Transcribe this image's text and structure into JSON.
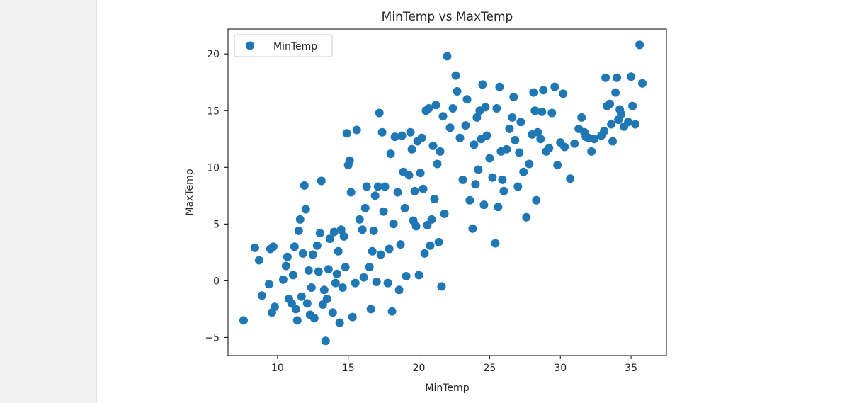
{
  "chart_data": {
    "type": "scatter",
    "title": "MinTemp vs MaxTemp",
    "xlabel": "MinTemp",
    "ylabel": "MaxTemp",
    "xlim": [
      6.5,
      37.5
    ],
    "ylim": [
      -6.6,
      22.2
    ],
    "xticks": [
      10,
      15,
      20,
      25,
      30,
      35
    ],
    "yticks": [
      -5,
      0,
      5,
      10,
      15,
      20
    ],
    "xtick_labels": [
      "10",
      "15",
      "20",
      "25",
      "30",
      "35"
    ],
    "ytick_labels": [
      "−5",
      "0",
      "5",
      "10",
      "15",
      "20"
    ],
    "legend_position": "upper-left",
    "grid": false,
    "series": [
      {
        "name": "MinTemp",
        "color": "#1f77b4",
        "points": [
          [
            7.6,
            -3.5
          ],
          [
            8.4,
            2.9
          ],
          [
            8.7,
            1.8
          ],
          [
            8.9,
            -1.3
          ],
          [
            9.4,
            -0.3
          ],
          [
            9.5,
            2.8
          ],
          [
            9.7,
            3.0
          ],
          [
            9.6,
            -2.8
          ],
          [
            9.8,
            -2.3
          ],
          [
            10.4,
            0.1
          ],
          [
            10.6,
            1.3
          ],
          [
            10.7,
            2.1
          ],
          [
            10.8,
            -1.6
          ],
          [
            11.0,
            -2.0
          ],
          [
            11.1,
            0.5
          ],
          [
            11.2,
            3.0
          ],
          [
            11.3,
            -2.5
          ],
          [
            11.4,
            -3.5
          ],
          [
            11.5,
            4.4
          ],
          [
            11.6,
            5.4
          ],
          [
            11.7,
            -1.4
          ],
          [
            11.8,
            2.4
          ],
          [
            11.9,
            8.4
          ],
          [
            12.0,
            6.3
          ],
          [
            12.1,
            -2.0
          ],
          [
            12.2,
            0.9
          ],
          [
            12.3,
            -3.0
          ],
          [
            12.4,
            -0.6
          ],
          [
            12.5,
            2.3
          ],
          [
            12.6,
            -3.3
          ],
          [
            12.8,
            3.1
          ],
          [
            12.9,
            0.8
          ],
          [
            13.0,
            4.2
          ],
          [
            13.1,
            8.8
          ],
          [
            13.2,
            -2.1
          ],
          [
            13.3,
            -0.8
          ],
          [
            13.4,
            -5.3
          ],
          [
            13.5,
            -1.6
          ],
          [
            13.6,
            1.0
          ],
          [
            13.7,
            3.7
          ],
          [
            13.9,
            -2.8
          ],
          [
            14.0,
            4.3
          ],
          [
            14.1,
            -0.2
          ],
          [
            14.2,
            0.6
          ],
          [
            14.3,
            2.6
          ],
          [
            14.4,
            -3.7
          ],
          [
            14.5,
            4.5
          ],
          [
            14.6,
            -0.6
          ],
          [
            14.7,
            3.9
          ],
          [
            14.8,
            1.2
          ],
          [
            14.9,
            13.0
          ],
          [
            15.0,
            10.2
          ],
          [
            15.1,
            10.6
          ],
          [
            15.2,
            7.8
          ],
          [
            15.3,
            -3.2
          ],
          [
            15.5,
            -0.2
          ],
          [
            15.6,
            13.3
          ],
          [
            15.8,
            5.4
          ],
          [
            16.0,
            4.5
          ],
          [
            16.1,
            0.3
          ],
          [
            16.2,
            6.4
          ],
          [
            16.3,
            8.3
          ],
          [
            16.5,
            1.2
          ],
          [
            16.6,
            -2.5
          ],
          [
            16.7,
            2.6
          ],
          [
            16.8,
            4.4
          ],
          [
            16.9,
            7.5
          ],
          [
            17.0,
            -0.1
          ],
          [
            17.1,
            8.3
          ],
          [
            17.2,
            14.8
          ],
          [
            17.3,
            2.3
          ],
          [
            17.4,
            13.1
          ],
          [
            17.5,
            6.1
          ],
          [
            17.6,
            8.3
          ],
          [
            17.8,
            -0.2
          ],
          [
            17.9,
            2.8
          ],
          [
            18.0,
            11.2
          ],
          [
            18.1,
            -2.7
          ],
          [
            18.2,
            5.0
          ],
          [
            18.3,
            12.7
          ],
          [
            18.5,
            7.8
          ],
          [
            18.6,
            -0.8
          ],
          [
            18.7,
            3.2
          ],
          [
            18.8,
            12.8
          ],
          [
            18.9,
            9.6
          ],
          [
            19.0,
            6.4
          ],
          [
            19.1,
            0.4
          ],
          [
            19.3,
            9.3
          ],
          [
            19.4,
            13.1
          ],
          [
            19.5,
            11.6
          ],
          [
            19.6,
            5.3
          ],
          [
            19.7,
            7.9
          ],
          [
            19.8,
            4.8
          ],
          [
            19.9,
            12.3
          ],
          [
            20.0,
            0.5
          ],
          [
            20.1,
            9.5
          ],
          [
            20.2,
            12.6
          ],
          [
            20.3,
            8.1
          ],
          [
            20.4,
            2.4
          ],
          [
            20.5,
            15.0
          ],
          [
            20.6,
            4.9
          ],
          [
            20.7,
            15.2
          ],
          [
            20.8,
            3.1
          ],
          [
            20.9,
            5.4
          ],
          [
            21.0,
            11.9
          ],
          [
            21.1,
            7.2
          ],
          [
            21.2,
            15.5
          ],
          [
            21.3,
            10.3
          ],
          [
            21.4,
            3.4
          ],
          [
            21.5,
            11.4
          ],
          [
            21.6,
            -0.5
          ],
          [
            21.7,
            14.5
          ],
          [
            21.8,
            5.9
          ],
          [
            22.0,
            19.8
          ],
          [
            22.2,
            13.5
          ],
          [
            22.4,
            15.2
          ],
          [
            22.6,
            18.1
          ],
          [
            22.7,
            16.7
          ],
          [
            22.9,
            12.6
          ],
          [
            23.1,
            8.9
          ],
          [
            23.3,
            13.7
          ],
          [
            23.4,
            16.0
          ],
          [
            23.6,
            7.1
          ],
          [
            23.8,
            4.6
          ],
          [
            23.9,
            12.0
          ],
          [
            24.0,
            8.5
          ],
          [
            24.1,
            14.4
          ],
          [
            24.2,
            9.8
          ],
          [
            24.3,
            15.0
          ],
          [
            24.4,
            12.5
          ],
          [
            24.5,
            17.3
          ],
          [
            24.6,
            6.7
          ],
          [
            24.7,
            15.3
          ],
          [
            24.8,
            12.8
          ],
          [
            25.0,
            10.8
          ],
          [
            25.2,
            9.1
          ],
          [
            25.4,
            3.3
          ],
          [
            25.5,
            15.2
          ],
          [
            25.6,
            6.5
          ],
          [
            25.7,
            17.1
          ],
          [
            25.8,
            11.4
          ],
          [
            25.9,
            8.9
          ],
          [
            26.0,
            7.9
          ],
          [
            26.2,
            11.6
          ],
          [
            26.4,
            13.4
          ],
          [
            26.6,
            14.4
          ],
          [
            26.7,
            16.2
          ],
          [
            26.8,
            12.4
          ],
          [
            27.0,
            8.3
          ],
          [
            27.1,
            11.3
          ],
          [
            27.2,
            14.0
          ],
          [
            27.4,
            9.6
          ],
          [
            27.6,
            5.6
          ],
          [
            27.8,
            10.3
          ],
          [
            28.0,
            12.9
          ],
          [
            28.1,
            16.6
          ],
          [
            28.2,
            15.0
          ],
          [
            28.3,
            7.1
          ],
          [
            28.4,
            13.1
          ],
          [
            28.6,
            12.5
          ],
          [
            28.7,
            14.9
          ],
          [
            28.8,
            16.8
          ],
          [
            29.0,
            11.4
          ],
          [
            29.2,
            11.7
          ],
          [
            29.4,
            14.8
          ],
          [
            29.6,
            17.1
          ],
          [
            29.8,
            10.2
          ],
          [
            30.0,
            12.2
          ],
          [
            30.2,
            16.5
          ],
          [
            30.3,
            11.8
          ],
          [
            30.7,
            9.0
          ],
          [
            31.0,
            12.1
          ],
          [
            31.3,
            13.4
          ],
          [
            31.5,
            14.4
          ],
          [
            31.7,
            13.1
          ],
          [
            31.8,
            12.7
          ],
          [
            32.0,
            12.6
          ],
          [
            32.2,
            11.4
          ],
          [
            32.4,
            12.5
          ],
          [
            33.1,
            13.2
          ],
          [
            33.3,
            15.4
          ],
          [
            33.5,
            15.6
          ],
          [
            33.7,
            12.3
          ],
          [
            33.9,
            16.6
          ],
          [
            34.0,
            17.9
          ],
          [
            34.1,
            14.2
          ],
          [
            34.3,
            14.7
          ],
          [
            34.5,
            13.6
          ],
          [
            34.8,
            14.0
          ],
          [
            35.0,
            18.0
          ],
          [
            35.1,
            15.4
          ],
          [
            35.3,
            13.8
          ],
          [
            35.6,
            20.8
          ],
          [
            35.8,
            17.4
          ],
          [
            33.2,
            17.9
          ],
          [
            33.6,
            13.8
          ],
          [
            34.2,
            15.1
          ],
          [
            32.9,
            12.8
          ]
        ]
      }
    ]
  }
}
